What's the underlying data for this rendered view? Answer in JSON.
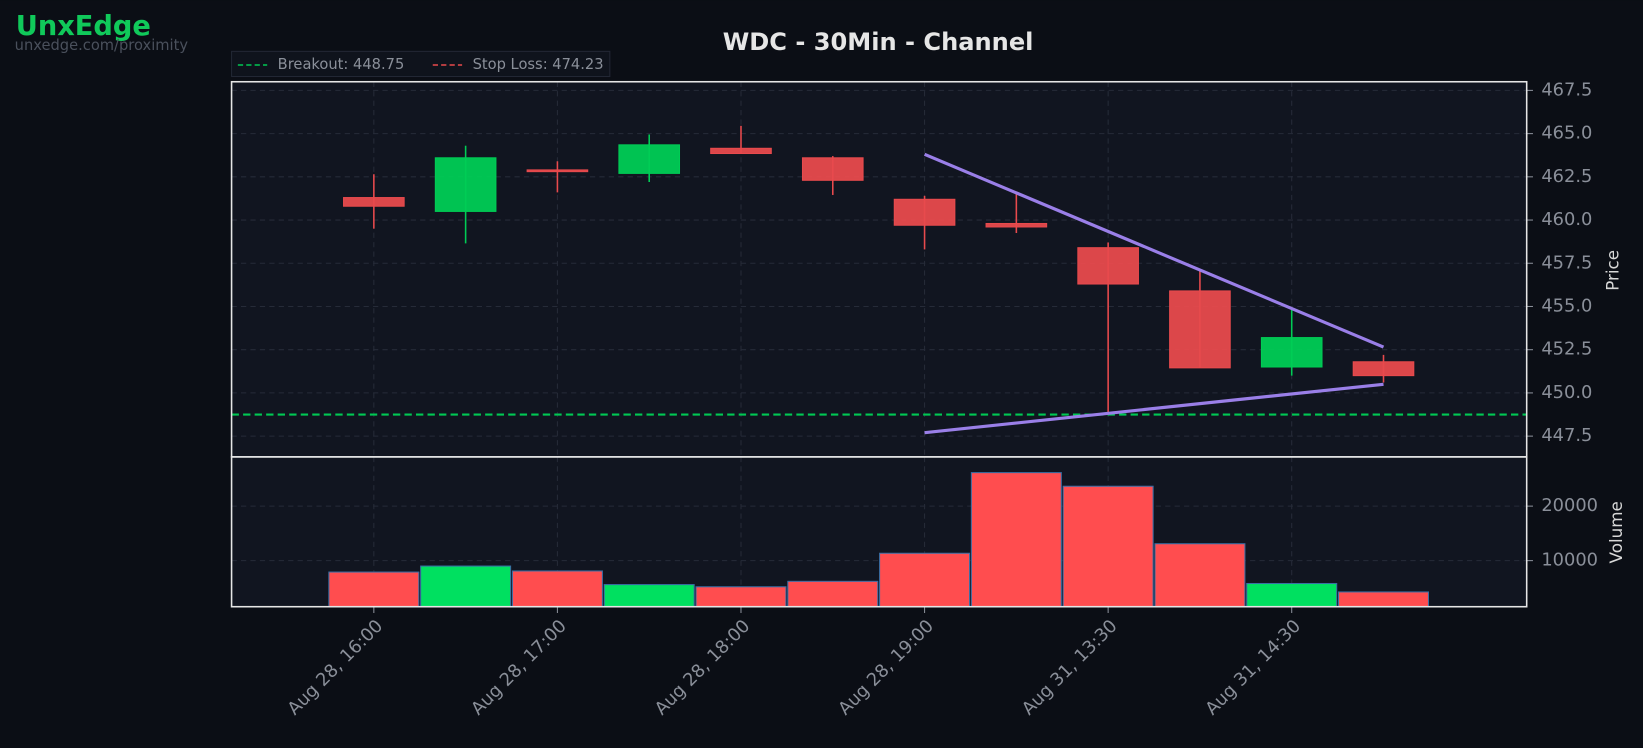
{
  "brand": {
    "name": "UnxEdge",
    "url": "unxedge.com/proximity"
  },
  "chart_data": {
    "type": "candlestick",
    "title": "WDC - 30Min - Channel",
    "categories": [
      "Aug 28, 16:00",
      null,
      "Aug 28, 17:00",
      null,
      "Aug 28, 18:00",
      null,
      "Aug 28, 19:00",
      null,
      "Aug 31, 13:30",
      null,
      "Aug 31, 14:30",
      null
    ],
    "open": [
      461.3,
      460.5,
      462.9,
      462.7,
      464.15,
      463.6,
      461.2,
      459.8,
      458.4,
      455.9,
      451.5,
      451.8
    ],
    "high": [
      462.65,
      464.3,
      463.4,
      464.95,
      465.45,
      463.7,
      461.4,
      461.55,
      458.7,
      457.1,
      454.85,
      452.2
    ],
    "low": [
      459.5,
      458.65,
      461.6,
      462.2,
      463.85,
      461.45,
      458.3,
      459.25,
      448.8,
      451.45,
      451.0,
      450.6
    ],
    "close": [
      460.8,
      463.6,
      462.8,
      464.35,
      463.85,
      462.3,
      459.7,
      459.6,
      456.3,
      451.45,
      453.2,
      451.0
    ],
    "up_color": "#00cc55",
    "down_color": "#e84a4d",
    "xlim": [
      -1.55,
      12.56
    ],
    "ylim": [
      446.3,
      468.0
    ],
    "yticks": [
      447.5,
      {
        "value": 450,
        "label": "450.0"
      },
      452.5,
      {
        "value": 455,
        "label": "455.0"
      },
      457.5,
      {
        "value": 460,
        "label": "460.0"
      },
      462.5,
      {
        "value": 465,
        "label": "465.0"
      },
      467.5
    ],
    "y_label": "Price",
    "grid": true,
    "lines": [
      {
        "name": "Breakout: 448.75",
        "value": 448.75,
        "color": "#00c853"
      },
      {
        "name": "Stop Loss: 474.23",
        "value": 474.23,
        "color": "#e84a4d"
      }
    ],
    "channel": {
      "color": "#9a7fe8",
      "upper": {
        "x": [
          6,
          11
        ],
        "y": [
          463.8,
          452.65
        ]
      },
      "lower": {
        "x": [
          6,
          11
        ],
        "y": [
          447.7,
          450.5
        ]
      }
    },
    "volume": {
      "values": [
        7900,
        9000,
        8100,
        5600,
        5200,
        6200,
        11350,
        26150,
        23650,
        13100,
        5800,
        4250
      ],
      "up_color": "#00e060",
      "down_color": "#ff4d4f",
      "ylim": [
        1540,
        29040
      ],
      "yticks": [
        10000,
        20000
      ],
      "y_label": "Volume"
    }
  }
}
